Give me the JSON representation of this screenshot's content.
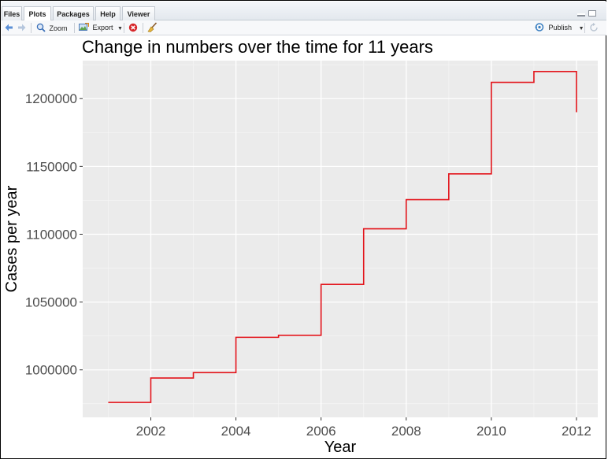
{
  "tabs": [
    {
      "label": "Files"
    },
    {
      "label": "Plots"
    },
    {
      "label": "Packages"
    },
    {
      "label": "Help"
    },
    {
      "label": "Viewer"
    }
  ],
  "toolbar": {
    "zoom_label": "Zoom",
    "export_label": "Export",
    "publish_label": "Publish"
  },
  "colors": {
    "panel_bg": "#ebebeb",
    "grid_major": "#ffffff",
    "line": "#e3141b",
    "tick_text": "#4d4d4d"
  },
  "chart_data": {
    "type": "line",
    "style": "step",
    "title": "Change in numbers over the time for 11 years",
    "xlabel": "Year",
    "ylabel": "Cases per year",
    "xlim": [
      2000.4,
      2012.5
    ],
    "ylim": [
      965000,
      1228000
    ],
    "x_ticks": [
      2002,
      2004,
      2006,
      2008,
      2010,
      2012
    ],
    "y_ticks": [
      1000000,
      1050000,
      1100000,
      1150000,
      1200000
    ],
    "x_tick_labels": [
      "2002",
      "2004",
      "2006",
      "2008",
      "2010",
      "2012"
    ],
    "y_tick_labels": [
      "1000000",
      "1050000",
      "1100000",
      "1150000",
      "1200000"
    ],
    "grid": true,
    "series": [
      {
        "x": [
          2001,
          2002,
          2003,
          2004,
          2005,
          2006,
          2007,
          2008,
          2009,
          2010,
          2011,
          2012
        ],
        "y": [
          976000,
          994000,
          998000,
          1024000,
          1025500,
          1063000,
          1104000,
          1125500,
          1144500,
          1212000,
          1220000,
          1190000
        ]
      }
    ]
  }
}
